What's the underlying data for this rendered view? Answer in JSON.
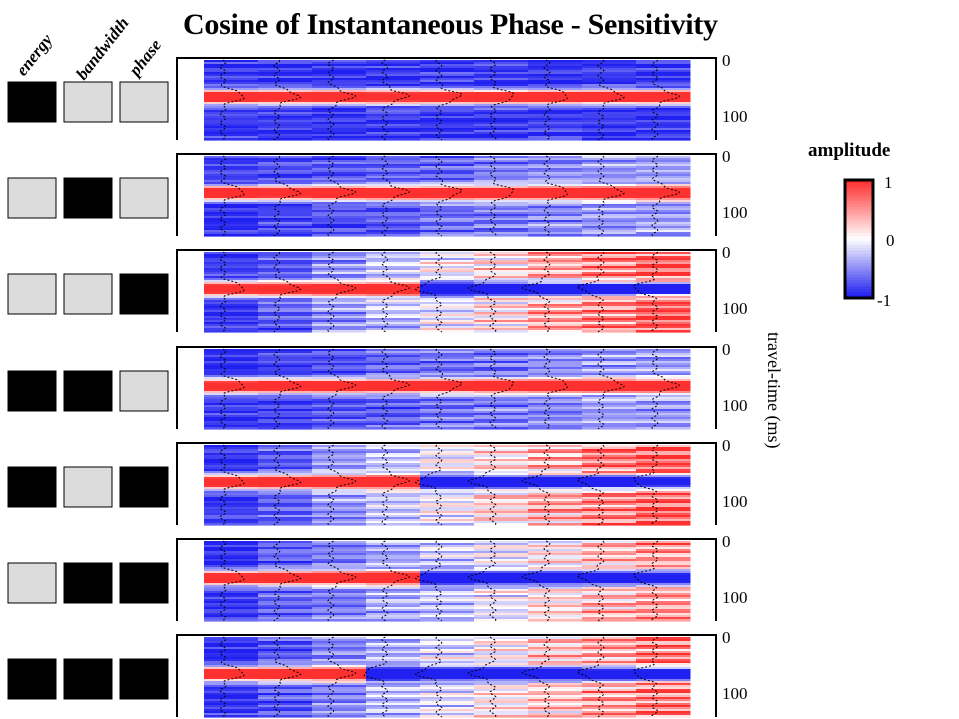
{
  "chart_data": {
    "type": "heatmap",
    "title": "Cosine of Instantaneous Phase - Sensitivity",
    "attribute_columns": [
      "energy",
      "bandwidth",
      "phase"
    ],
    "panel_count": 7,
    "traces_per_panel": 9,
    "ylabel": "travel-time (ms)",
    "yticks": [
      "0",
      "100"
    ],
    "ylim": [
      0,
      140
    ],
    "colorbar": {
      "title": "amplitude",
      "ticks": [
        "1",
        "0",
        "-1"
      ],
      "range": [
        -1,
        1
      ],
      "colors": {
        "positive": "#ff3030",
        "zero": "#ffffff",
        "negative": "#2020f0"
      }
    },
    "panels": [
      {
        "switches": [
          1,
          0,
          0
        ],
        "progression": 0.0,
        "wavelet_sign": [
          1,
          1,
          1,
          1,
          1,
          1,
          1,
          1,
          1
        ]
      },
      {
        "switches": [
          0,
          1,
          0
        ],
        "progression": 0.3,
        "wavelet_sign": [
          1,
          1,
          1,
          1,
          1,
          1,
          1,
          1,
          1
        ]
      },
      {
        "switches": [
          0,
          0,
          1
        ],
        "progression": 1.0,
        "wavelet_sign": [
          1,
          1,
          1,
          1,
          -1,
          -1,
          -1,
          -1,
          -1
        ]
      },
      {
        "switches": [
          1,
          1,
          0
        ],
        "progression": 0.3,
        "wavelet_sign": [
          1,
          1,
          1,
          1,
          1,
          1,
          1,
          1,
          1
        ]
      },
      {
        "switches": [
          1,
          0,
          1
        ],
        "progression": 1.0,
        "wavelet_sign": [
          1,
          1,
          1,
          1,
          -1,
          -1,
          -1,
          -1,
          -1
        ]
      },
      {
        "switches": [
          0,
          1,
          1
        ],
        "progression": 0.8,
        "wavelet_sign": [
          1,
          1,
          1,
          1,
          -1,
          -1,
          -1,
          -1,
          -1
        ]
      },
      {
        "switches": [
          1,
          1,
          1
        ],
        "progression": 0.9,
        "wavelet_sign": [
          1,
          1,
          1,
          -1,
          -1,
          -1,
          -1,
          -1,
          -1
        ]
      }
    ],
    "switch_colors": {
      "on": "#000000",
      "off": "#dcdcdc"
    }
  }
}
